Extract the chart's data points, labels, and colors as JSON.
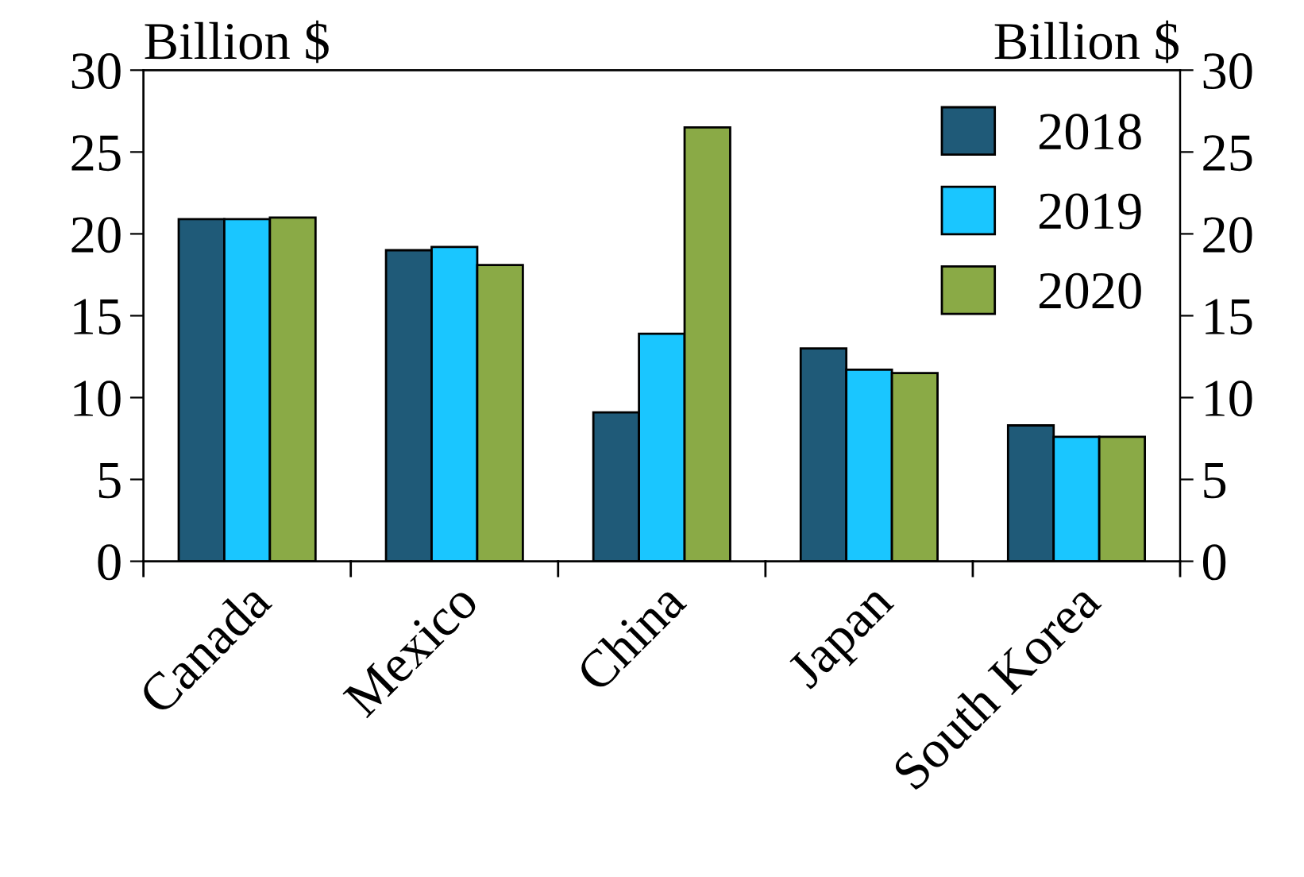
{
  "chart_data": {
    "type": "bar",
    "ylabel": "Billion $",
    "y2label": "Billion $",
    "categories": [
      "Canada",
      "Mexico",
      "China",
      "Japan",
      "South Korea"
    ],
    "series": [
      {
        "name": "2018",
        "color": "#1f5a78",
        "values": [
          20.9,
          19.0,
          9.1,
          13.0,
          8.3
        ]
      },
      {
        "name": "2019",
        "color": "#1ac6ff",
        "values": [
          20.9,
          19.2,
          13.9,
          11.7,
          7.6
        ]
      },
      {
        "name": "2020",
        "color": "#8aaa46",
        "values": [
          21.0,
          18.1,
          26.5,
          11.5,
          7.6
        ]
      }
    ],
    "ylim": [
      0,
      30
    ],
    "yticks": [
      0,
      5,
      10,
      15,
      20,
      25,
      30
    ],
    "y2lim": [
      0,
      30
    ],
    "y2ticks": [
      0,
      5,
      10,
      15,
      20,
      25,
      30
    ],
    "legend": "top right",
    "grid": false
  }
}
